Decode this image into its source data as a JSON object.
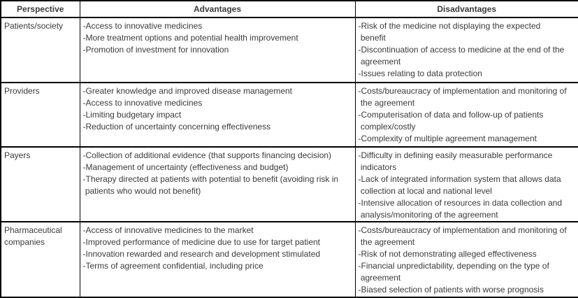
{
  "colors": {
    "text": "#3a3a3a",
    "border": "#000000",
    "background": "#ffffff"
  },
  "table": {
    "columns": [
      "Perspective",
      "Advantages",
      "Disadvantages"
    ],
    "rows": [
      {
        "perspective_lines": [
          "Patients/society"
        ],
        "advantages_lines": [
          "-Access to innovative medicines",
          "-More treatment options and potential health improvement",
          "-Promotion of investment for innovation"
        ],
        "disadvantages_lines": [
          "-Risk of the medicine not displaying the expected",
          " benefit",
          "-Discontinuation of access to medicine at the end of the",
          " agreement",
          "-Issues relating to data protection"
        ]
      },
      {
        "perspective_lines": [
          "Providers"
        ],
        "advantages_lines": [
          "-Greater knowledge and improved disease management",
          "-Access to innovative medicines",
          "-Limiting budgetary impact",
          "-Reduction of uncertainty concerning effectiveness"
        ],
        "disadvantages_lines": [
          "-Costs/bureaucracy of implementation and monitoring of",
          " the agreement",
          "-Computerisation of data and follow-up of patients",
          " complex/costly",
          "-Complexity of multiple agreement management"
        ]
      },
      {
        "perspective_lines": [
          "Payers"
        ],
        "advantages_lines": [
          "-Collection of additional evidence (that supports financing decision)",
          "-Management of uncertainty (effectiveness and budget)",
          "-Therapy directed at patients with potential to benefit (avoiding risk in",
          " patients who would not benefit)"
        ],
        "disadvantages_lines": [
          "-Difficulty in defining easily measurable performance",
          " indicators",
          "-Lack of integrated information system that allows data",
          " collection at local and national level",
          "-Intensive allocation of resources in data collection and",
          " analysis/monitoring of the agreement"
        ]
      },
      {
        "perspective_lines": [
          "Pharmaceutical",
          "companies"
        ],
        "advantages_lines": [
          "-Access of innovative medicines to the market",
          "-Improved performance of medicine due to use for target patient",
          "-Innovation rewarded and research and development stimulated",
          "-Terms of agreement confidential, including price"
        ],
        "disadvantages_lines": [
          "-Costs/bureaucracy of implementation and monitoring of",
          " the agreement",
          "-Risk of not demonstrating alleged effectiveness",
          "-Financial unpredictability, depending on the type of",
          " agreement",
          "-Biased selection of patients with worse prognosis"
        ]
      }
    ]
  }
}
